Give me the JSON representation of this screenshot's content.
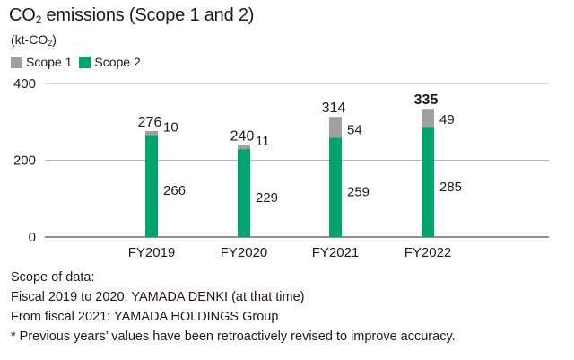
{
  "title_main": "CO",
  "title_sub": "2",
  "title_rest": " emissions (Scope 1 and 2)",
  "unit_main": "(kt-CO",
  "unit_sub": "2",
  "unit_end": ")",
  "legend": [
    {
      "label": "Scope 1",
      "color": "#a0a0a0"
    },
    {
      "label": "Scope 2",
      "color": "#00a46c"
    }
  ],
  "chart_data": {
    "type": "bar",
    "stacked": true,
    "categories": [
      "FY2019",
      "FY2020",
      "FY2021",
      "FY2022"
    ],
    "series": [
      {
        "name": "Scope 2",
        "values": [
          266,
          229,
          259,
          285
        ],
        "color": "#00a46c"
      },
      {
        "name": "Scope 1",
        "values": [
          10,
          11,
          54,
          49
        ],
        "color": "#a0a0a0"
      }
    ],
    "totals": [
      276,
      240,
      314,
      335
    ],
    "bold_total": "FY2022",
    "ylim": [
      0,
      400
    ],
    "yticks": [
      0,
      200,
      400
    ],
    "grid": true
  },
  "notes": [
    "Scope of data:",
    "Fiscal 2019 to 2020: YAMADA DENKI (at that time)",
    "From fiscal 2021: YAMADA HOLDINGS Group",
    "* Previous years’ values have been retroactively revised to improve accuracy."
  ]
}
